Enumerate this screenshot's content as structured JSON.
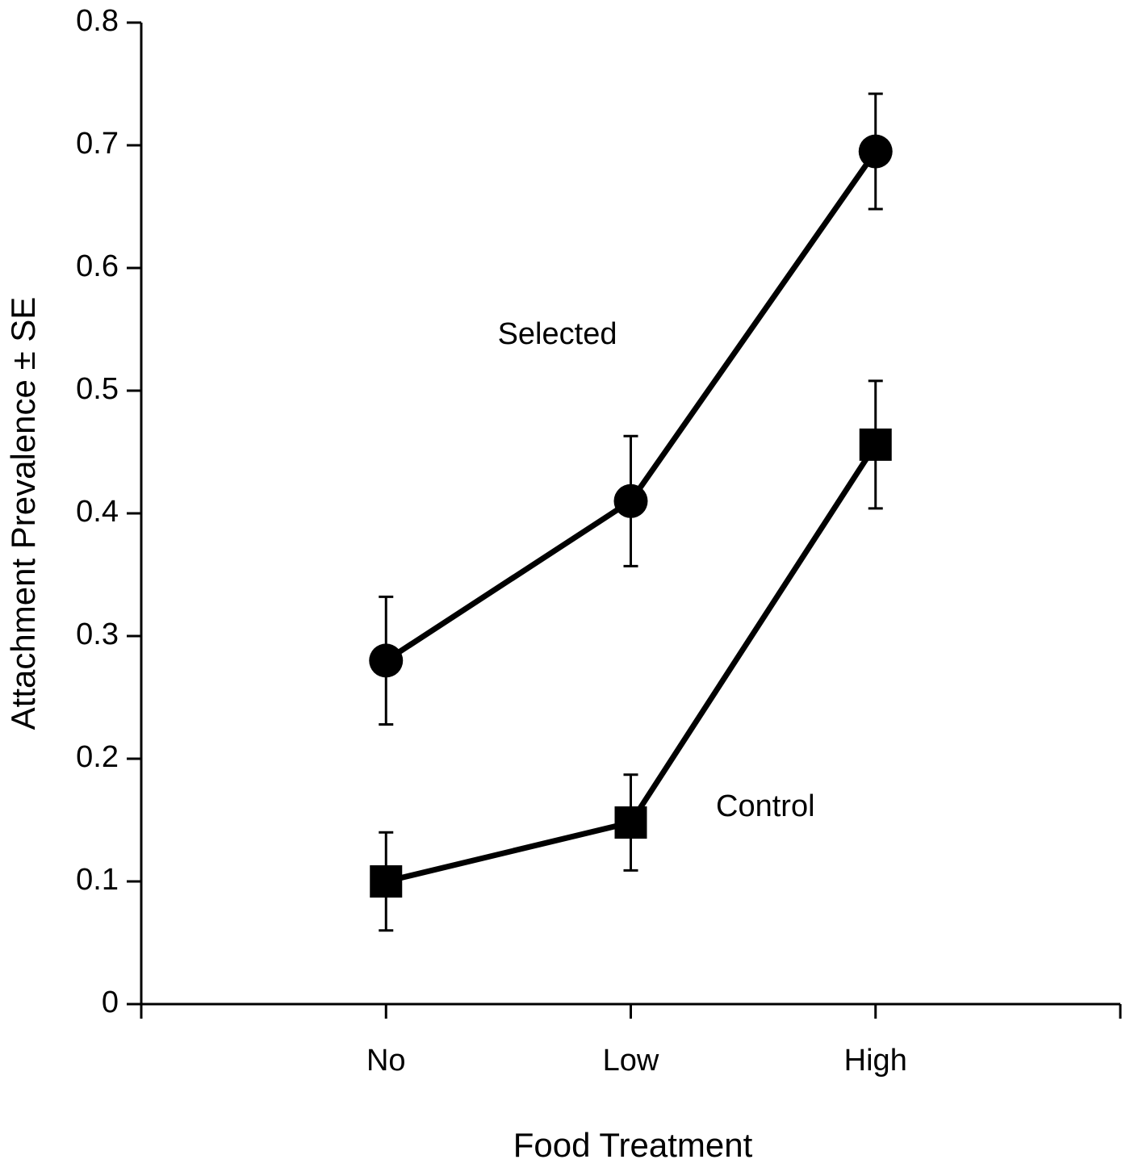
{
  "chart_data": {
    "type": "line",
    "x_label": "Food Treatment",
    "y_label": "Attachment Prevalence ± SE",
    "categories": [
      "No",
      "Low",
      "High"
    ],
    "series": [
      {
        "name": "Selected",
        "color": "#000000",
        "marker": "circle",
        "values": [
          0.28,
          0.41,
          0.695
        ],
        "errors": [
          0.052,
          0.053,
          0.047
        ]
      },
      {
        "name": "Control",
        "color": "#000000",
        "marker": "square",
        "values": [
          0.1,
          0.148,
          0.456
        ],
        "errors": [
          0.04,
          0.039,
          0.052
        ]
      }
    ],
    "ylim": [
      0,
      0.8
    ],
    "yticks": [
      0,
      0.1,
      0.2,
      0.3,
      0.4,
      0.5,
      0.6,
      0.7,
      0.8
    ],
    "grid": false
  }
}
